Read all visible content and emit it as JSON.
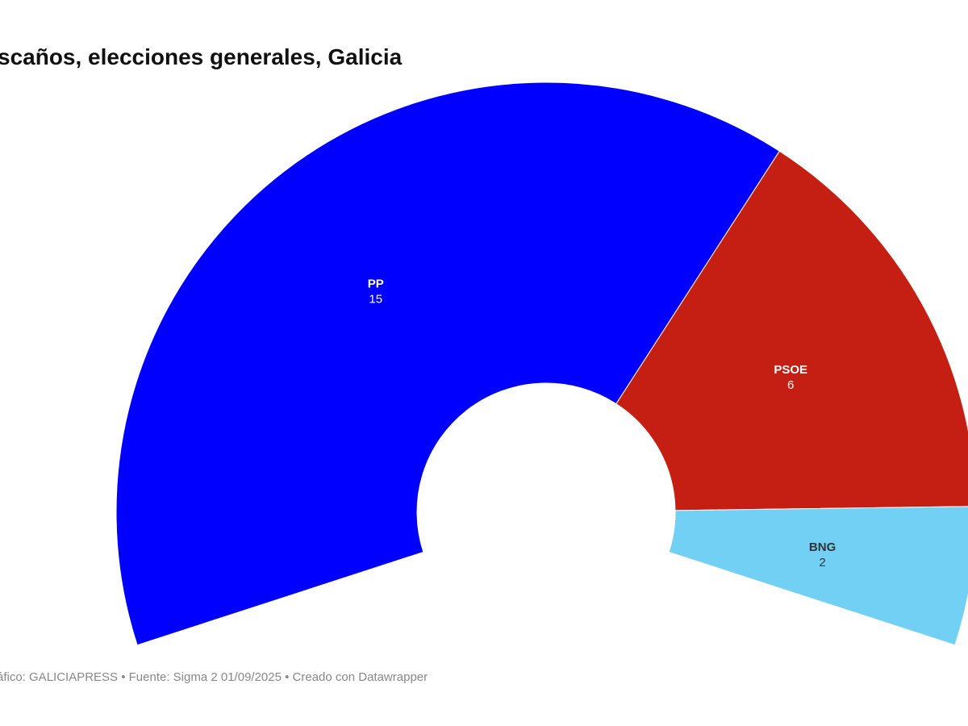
{
  "chart_data": {
    "type": "semi-donut",
    "title": "scaños, elecciones generales, Galicia",
    "footer": "áfico: GALICIAPRESS • Fuente: Sigma 2 01/09/2025 • Creado con Datawrapper",
    "categories": [
      "PP",
      "PSOE",
      "BNG"
    ],
    "values": [
      15,
      6,
      2
    ],
    "colors": [
      "#0000ff",
      "#c51e12",
      "#72d0f4"
    ]
  }
}
